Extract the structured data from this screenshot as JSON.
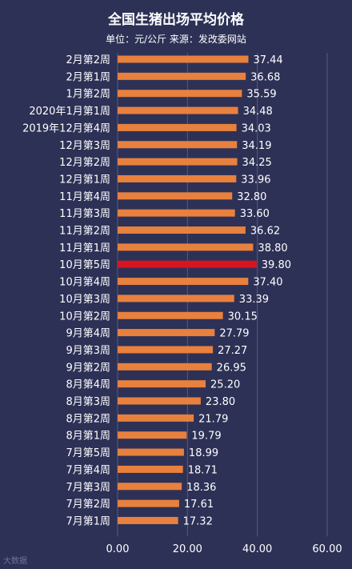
{
  "chart_data": {
    "type": "bar",
    "orientation": "horizontal",
    "title": "全国生猪出场平均价格",
    "subtitle": "单位：元/公斤 来源：发改委网站",
    "categories": [
      "2月第2周",
      "2月第1周",
      "1月第2周",
      "2020年1月第1周",
      "2019年12月第4周",
      "12月第3周",
      "12月第2周",
      "12月第1周",
      "11月第4周",
      "11月第3周",
      "11月第2周",
      "11月第1周",
      "10月第5周",
      "10月第4周",
      "10月第3周",
      "10月第2周",
      "9月第4周",
      "9月第3周",
      "9月第2周",
      "8月第4周",
      "8月第3周",
      "8月第2周",
      "8月第1周",
      "7月第5周",
      "7月第4周",
      "7月第3周",
      "7月第2周",
      "7月第1周"
    ],
    "values": [
      37.44,
      36.68,
      35.59,
      34.48,
      34.03,
      34.19,
      34.25,
      33.96,
      32.8,
      33.6,
      36.62,
      38.8,
      39.8,
      37.4,
      33.39,
      30.15,
      27.79,
      27.27,
      26.95,
      25.2,
      23.8,
      21.79,
      19.79,
      18.99,
      18.71,
      18.36,
      17.61,
      17.32
    ],
    "value_labels": [
      "37.44",
      "36.68",
      "35.59",
      "34.48",
      "34.03",
      "34.19",
      "34.25",
      "33.96",
      "32.80",
      "33.60",
      "36.62",
      "38.80",
      "39.80",
      "37.40",
      "33.39",
      "30.15",
      "27.79",
      "27.27",
      "26.95",
      "25.20",
      "23.80",
      "21.79",
      "19.79",
      "18.99",
      "18.71",
      "18.36",
      "17.61",
      "17.32"
    ],
    "highlight_index": 12,
    "xlim": [
      0,
      60
    ],
    "ticks": [
      0,
      20,
      40,
      60
    ],
    "tick_labels": [
      "0.00",
      "20.00",
      "40.00",
      "60.00"
    ],
    "grid": true,
    "colors": {
      "bar": "#e8803e",
      "highlight": "#d7141f",
      "grid": "#555a80",
      "background": "#2d3156"
    }
  },
  "watermark": "大数据"
}
